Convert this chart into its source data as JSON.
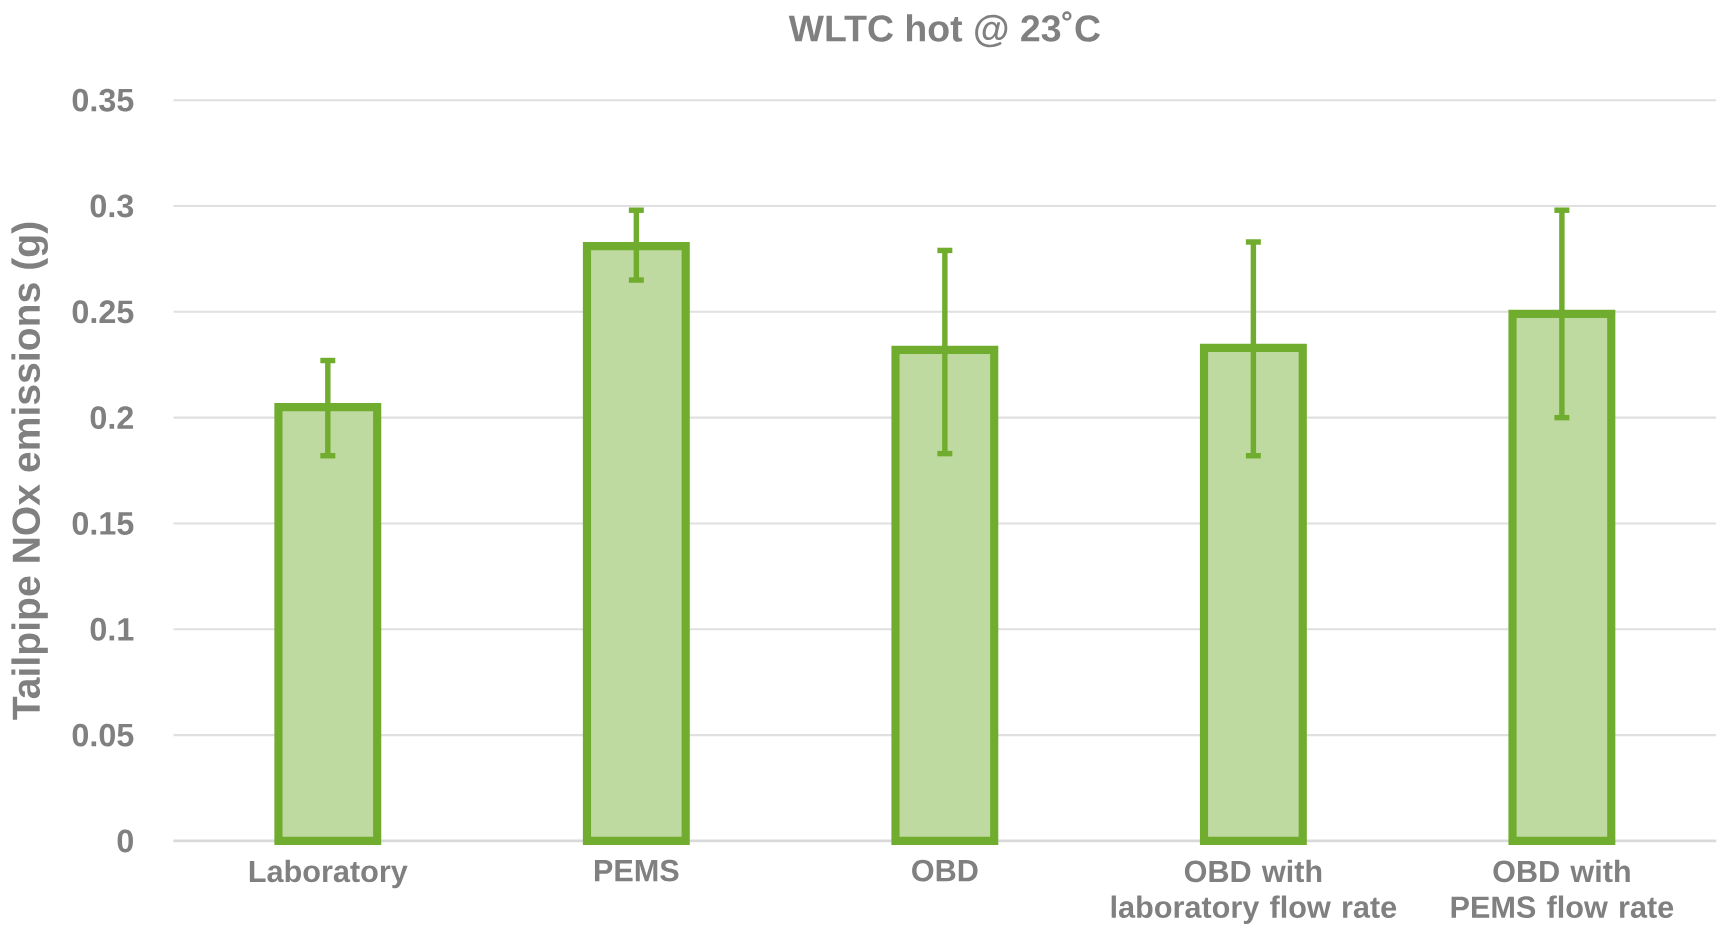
{
  "chart_data": {
    "type": "bar",
    "title": "WLTC hot @ 23˚C",
    "ylabel": "Tailpipe NOx emissions (g)",
    "categories": [
      "Laboratory",
      "PEMS",
      "OBD",
      "OBD with laboratory flow rate",
      "OBD with PEMS flow rate"
    ],
    "values": [
      0.205,
      0.281,
      0.232,
      0.233,
      0.249
    ],
    "errors": [
      [
        0.182,
        0.227
      ],
      [
        0.265,
        0.298
      ],
      [
        0.183,
        0.279
      ],
      [
        0.182,
        0.283
      ],
      [
        0.2,
        0.298
      ]
    ],
    "color": "#70ad2f",
    "ylim": [
      0,
      0.35
    ],
    "yticks": [
      0,
      0.05,
      0.1,
      0.15,
      0.2,
      0.25,
      0.3,
      0.35
    ],
    "grid": "y"
  }
}
